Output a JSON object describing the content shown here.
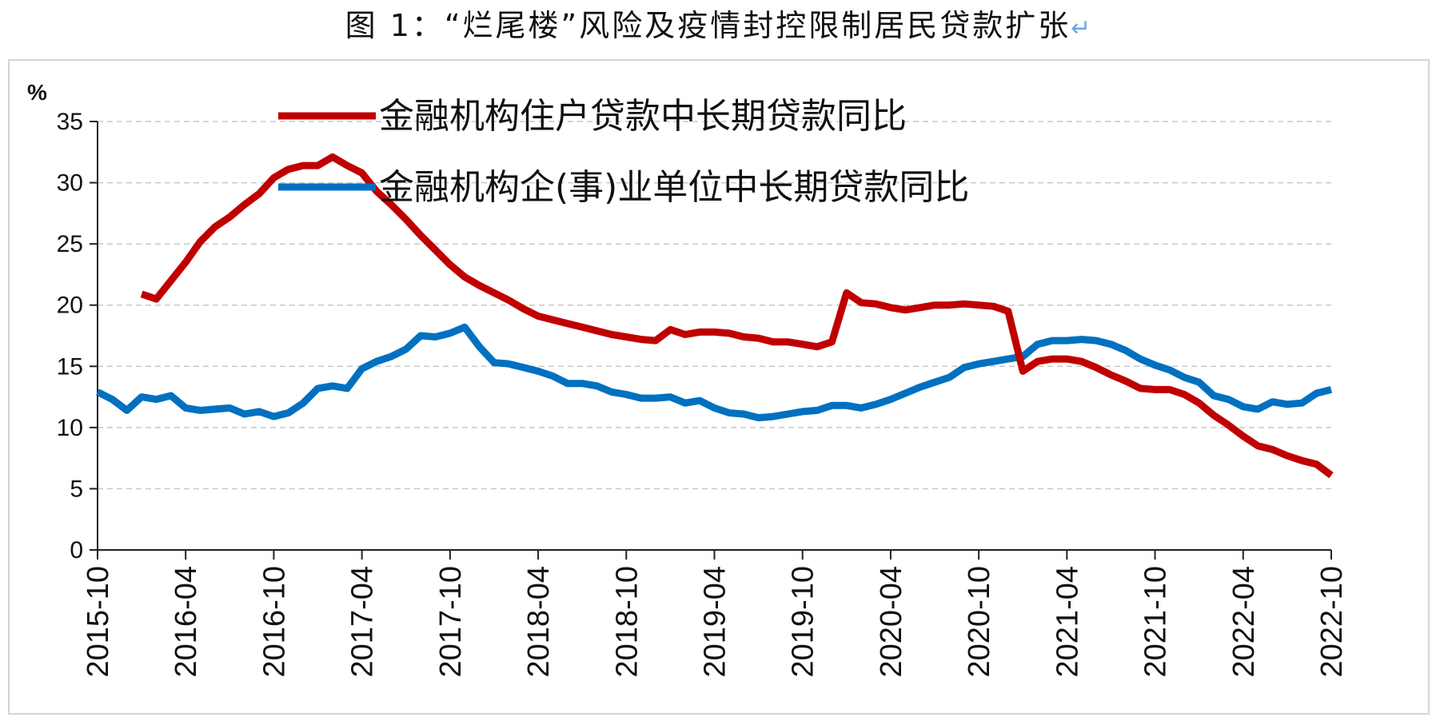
{
  "title": "图 1：“烂尾楼”风险及疫情封控限制居民贷款扩张",
  "title_mark": "↵",
  "chart_data": {
    "type": "line",
    "ylabel": "%",
    "ylim": [
      0,
      35
    ],
    "yticks": [
      0,
      5,
      10,
      15,
      20,
      25,
      30,
      35
    ],
    "grid": "horizontal dashed",
    "legend_position": "top-center",
    "x": [
      "2015-10",
      "2015-11",
      "2015-12",
      "2016-01",
      "2016-02",
      "2016-03",
      "2016-04",
      "2016-05",
      "2016-06",
      "2016-07",
      "2016-08",
      "2016-09",
      "2016-10",
      "2016-11",
      "2016-12",
      "2017-01",
      "2017-02",
      "2017-03",
      "2017-04",
      "2017-05",
      "2017-06",
      "2017-07",
      "2017-08",
      "2017-09",
      "2017-10",
      "2017-11",
      "2017-12",
      "2018-01",
      "2018-02",
      "2018-03",
      "2018-04",
      "2018-05",
      "2018-06",
      "2018-07",
      "2018-08",
      "2018-09",
      "2018-10",
      "2018-11",
      "2018-12",
      "2019-01",
      "2019-02",
      "2019-03",
      "2019-04",
      "2019-05",
      "2019-06",
      "2019-07",
      "2019-08",
      "2019-09",
      "2019-10",
      "2019-11",
      "2019-12",
      "2020-01",
      "2020-02",
      "2020-03",
      "2020-04",
      "2020-05",
      "2020-06",
      "2020-07",
      "2020-08",
      "2020-09",
      "2020-10",
      "2020-11",
      "2020-12",
      "2021-01",
      "2021-02",
      "2021-03",
      "2021-04",
      "2021-05",
      "2021-06",
      "2021-07",
      "2021-08",
      "2021-09",
      "2021-10",
      "2021-11",
      "2021-12",
      "2022-01",
      "2022-02",
      "2022-03",
      "2022-04",
      "2022-05",
      "2022-06",
      "2022-07",
      "2022-08",
      "2022-09",
      "2022-10"
    ],
    "xtick_labels": [
      "2015-10",
      "2016-04",
      "2016-10",
      "2017-04",
      "2017-10",
      "2018-04",
      "2018-10",
      "2019-04",
      "2019-10",
      "2020-04",
      "2020-10",
      "2021-04",
      "2021-10",
      "2022-04",
      "2022-10"
    ],
    "series": [
      {
        "name": "金融机构住户贷款中长期贷款同比",
        "color": "#c00000",
        "values": [
          null,
          null,
          null,
          20.9,
          20.5,
          22.0,
          23.5,
          25.2,
          26.4,
          27.2,
          28.2,
          29.1,
          30.4,
          31.1,
          31.4,
          31.4,
          32.1,
          31.4,
          30.8,
          29.3,
          28.2,
          27.0,
          25.7,
          24.5,
          23.3,
          22.3,
          21.6,
          21.0,
          20.4,
          19.7,
          19.1,
          18.8,
          18.5,
          18.2,
          17.9,
          17.6,
          17.4,
          17.2,
          17.1,
          18.0,
          17.6,
          17.8,
          17.8,
          17.7,
          17.4,
          17.3,
          17.0,
          17.0,
          16.8,
          16.6,
          17.0,
          21.0,
          20.2,
          20.1,
          19.8,
          19.6,
          19.8,
          20.0,
          20.0,
          20.1,
          20.0,
          19.9,
          19.5,
          14.6,
          15.4,
          15.6,
          15.6,
          15.4,
          14.9,
          14.3,
          13.8,
          13.2,
          13.1,
          13.1,
          12.7,
          12.0,
          11.0,
          10.2,
          9.3,
          8.5,
          8.2,
          7.7,
          7.3,
          7.0,
          6.1
        ]
      },
      {
        "name": "金融机构企(事)业单位中长期贷款同比",
        "color": "#0070c0",
        "values": [
          12.9,
          12.3,
          11.4,
          12.5,
          12.3,
          12.6,
          11.6,
          11.4,
          11.5,
          11.6,
          11.1,
          11.3,
          10.9,
          11.2,
          12.0,
          13.2,
          13.4,
          13.2,
          14.8,
          15.4,
          15.8,
          16.4,
          17.5,
          17.4,
          17.7,
          18.2,
          16.6,
          15.3,
          15.2,
          14.9,
          14.6,
          14.2,
          13.6,
          13.6,
          13.4,
          12.9,
          12.7,
          12.4,
          12.4,
          12.5,
          12.0,
          12.2,
          11.6,
          11.2,
          11.1,
          10.8,
          10.9,
          11.1,
          11.3,
          11.4,
          11.8,
          11.8,
          11.6,
          11.9,
          12.3,
          12.8,
          13.3,
          13.7,
          14.1,
          14.9,
          15.2,
          15.4,
          15.6,
          15.8,
          16.8,
          17.1,
          17.1,
          17.2,
          17.1,
          16.8,
          16.3,
          15.6,
          15.1,
          14.7,
          14.1,
          13.7,
          12.6,
          12.3,
          11.7,
          11.5,
          12.1,
          11.9,
          12.0,
          12.8,
          13.1
        ]
      }
    ]
  }
}
